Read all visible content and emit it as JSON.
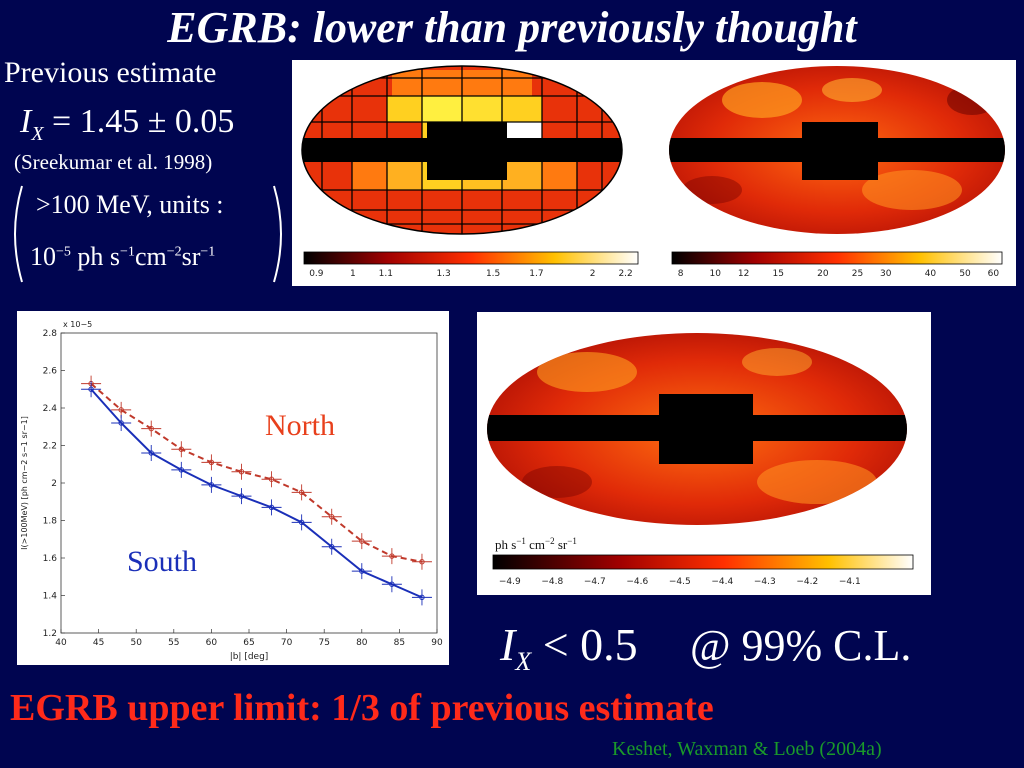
{
  "title": "EGRB: lower than previously thought",
  "previous_estimate": {
    "label": "Previous estimate",
    "symbol": "I",
    "subscript": "X",
    "value": "= 1.45 ± 0.05",
    "reference": "(Sreekumar et al. 1998)",
    "units_line1": ">100  MeV, units :",
    "units_line2_parts": [
      "10",
      "−5",
      " ph s",
      "−1",
      "cm",
      "−2",
      "sr",
      "−1"
    ]
  },
  "colorbar_left": {
    "ticks": [
      "0.9",
      "1",
      "1.1",
      "1.3",
      "1.5",
      "1.7",
      "2",
      "2.2"
    ]
  },
  "colorbar_right": {
    "ticks": [
      "8",
      "10",
      "12",
      "15",
      "20",
      "25",
      "30",
      "40",
      "50",
      "60"
    ]
  },
  "colorbar_lower": {
    "unit_parts": [
      "ph s",
      "−1",
      " cm",
      "−2",
      " sr",
      "−1"
    ],
    "ticks": [
      "−4.9",
      "−4.8",
      "−4.7",
      "−4.6",
      "−4.5",
      "−4.4",
      "−4.3",
      "−4.2",
      "−4.1"
    ]
  },
  "chart_data": {
    "type": "line",
    "xlabel": "|b| [deg]",
    "ylabel": "I(>100MeV) [ph cm−2 s−1 sr−1]",
    "y_multiplier": "x 10−5",
    "xlim": [
      40,
      90
    ],
    "ylim": [
      1.2,
      2.8
    ],
    "xticks": [
      40,
      45,
      50,
      55,
      60,
      65,
      70,
      75,
      80,
      85,
      90
    ],
    "yticks": [
      1.2,
      1.4,
      1.6,
      1.8,
      2,
      2.2,
      2.4,
      2.6,
      2.8
    ],
    "x": [
      44,
      48,
      52,
      56,
      60,
      64,
      68,
      72,
      76,
      80,
      84,
      88
    ],
    "series": [
      {
        "name": "North",
        "color": "#c0392b",
        "dashed": true,
        "values": [
          2.53,
          2.39,
          2.29,
          2.18,
          2.11,
          2.06,
          2.02,
          1.95,
          1.82,
          1.69,
          1.61,
          1.58
        ]
      },
      {
        "name": "South",
        "color": "#1a2fb8",
        "dashed": false,
        "values": [
          2.5,
          2.32,
          2.16,
          2.07,
          1.99,
          1.93,
          1.87,
          1.79,
          1.66,
          1.53,
          1.46,
          1.39
        ]
      }
    ],
    "labels": {
      "north": "North",
      "south": "South"
    }
  },
  "upper_limit": {
    "symbol": "I",
    "subscript": "X",
    "value": "< 0.5",
    "confidence": "@ 99% C.L."
  },
  "conclusion": "EGRB upper limit: 1/3 of previous estimate",
  "credit": "Keshet, Waxman & Loeb (2004a)",
  "colors": {
    "background": "#000550",
    "conclusion": "#ff2a1a",
    "credit": "#1a9a2a",
    "north_label": "#e8401c",
    "south_label": "#1a2fb8"
  }
}
